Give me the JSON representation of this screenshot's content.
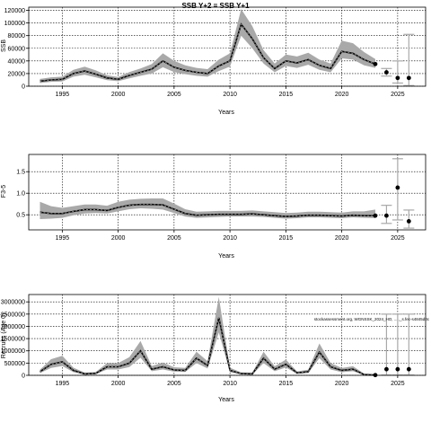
{
  "figure": {
    "title": "SSB Y+2 = SSB Y+1",
    "source_note": "stockassessment.org, WGNSSK_2024_HO, ... ,_s.fec-s4845d0c"
  },
  "chart_data": [
    {
      "type": "line",
      "ylabel": "SSB",
      "xlabel": "Years",
      "xlim": [
        1992,
        2027.5
      ],
      "ylim": [
        0,
        125000
      ],
      "xticks": [
        1995,
        2000,
        2005,
        2010,
        2015,
        2020,
        2025
      ],
      "yticks": [
        0,
        20000,
        40000,
        60000,
        80000,
        100000,
        120000
      ],
      "grid": true,
      "x": [
        1993,
        1994,
        1995,
        1996,
        1997,
        1998,
        1999,
        2000,
        2001,
        2002,
        2003,
        2004,
        2005,
        2006,
        2007,
        2008,
        2009,
        2010,
        2011,
        2012,
        2013,
        2014,
        2015,
        2016,
        2017,
        2018,
        2019,
        2020,
        2021,
        2022,
        2023
      ],
      "series": [
        {
          "role": "estimate",
          "values": [
            8000,
            10000,
            11000,
            20000,
            24000,
            19000,
            13000,
            11000,
            17000,
            22000,
            27000,
            40000,
            30000,
            25000,
            22000,
            20000,
            32000,
            40000,
            98000,
            75000,
            45000,
            28000,
            40000,
            37000,
            42000,
            33000,
            28000,
            55000,
            52000,
            42000,
            35000
          ]
        },
        {
          "role": "lower",
          "values": [
            5000,
            7000,
            7500,
            15000,
            18000,
            14000,
            9500,
            8000,
            12500,
            16500,
            20000,
            30000,
            22500,
            19000,
            16500,
            15000,
            24000,
            31000,
            80000,
            60000,
            36000,
            22000,
            32000,
            29000,
            34000,
            26000,
            22000,
            44000,
            42000,
            33000,
            29000
          ]
        },
        {
          "role": "upper",
          "values": [
            11500,
            14000,
            15000,
            26000,
            31000,
            25000,
            17500,
            14500,
            22500,
            28000,
            35000,
            52000,
            40000,
            33000,
            29000,
            27000,
            42000,
            52000,
            122000,
            95000,
            57000,
            36000,
            50000,
            47000,
            53000,
            42000,
            36000,
            72000,
            68000,
            54000,
            43000
          ]
        }
      ],
      "forecast": [
        {
          "x": 2024,
          "value": 22000,
          "low": 16000,
          "high": 28000
        },
        {
          "x": 2025,
          "value": 13000,
          "low": 5000,
          "high": 40000
        },
        {
          "x": 2026,
          "value": 13000,
          "low": 1000,
          "high": 82000
        }
      ]
    },
    {
      "type": "line",
      "ylabel": "F3-5",
      "xlabel": "Years",
      "xlim": [
        1992,
        2027.5
      ],
      "ylim": [
        0.15,
        1.9
      ],
      "xticks": [
        1995,
        2000,
        2005,
        2010,
        2015,
        2020,
        2025
      ],
      "yticks": [
        0.5,
        1.0,
        1.5
      ],
      "yticklabels": [
        "0.5",
        "1.0",
        "1.5"
      ],
      "grid": true,
      "x": [
        1993,
        1994,
        1995,
        1996,
        1997,
        1998,
        1999,
        2000,
        2001,
        2002,
        2003,
        2004,
        2005,
        2006,
        2007,
        2008,
        2009,
        2010,
        2011,
        2012,
        2013,
        2014,
        2015,
        2016,
        2017,
        2018,
        2019,
        2020,
        2021,
        2022,
        2023
      ],
      "series": [
        {
          "role": "estimate",
          "values": [
            0.56,
            0.53,
            0.53,
            0.58,
            0.62,
            0.62,
            0.6,
            0.67,
            0.72,
            0.74,
            0.74,
            0.73,
            0.63,
            0.53,
            0.49,
            0.5,
            0.51,
            0.51,
            0.51,
            0.52,
            0.5,
            0.48,
            0.46,
            0.47,
            0.49,
            0.49,
            0.48,
            0.47,
            0.49,
            0.48,
            0.48
          ]
        },
        {
          "role": "lower",
          "values": [
            0.4,
            0.41,
            0.43,
            0.49,
            0.53,
            0.54,
            0.53,
            0.58,
            0.63,
            0.65,
            0.64,
            0.62,
            0.54,
            0.46,
            0.43,
            0.44,
            0.45,
            0.46,
            0.46,
            0.46,
            0.45,
            0.43,
            0.41,
            0.42,
            0.44,
            0.44,
            0.43,
            0.42,
            0.44,
            0.43,
            0.42
          ]
        },
        {
          "role": "upper",
          "values": [
            0.8,
            0.7,
            0.66,
            0.7,
            0.74,
            0.74,
            0.71,
            0.8,
            0.85,
            0.87,
            0.88,
            0.88,
            0.76,
            0.63,
            0.57,
            0.58,
            0.59,
            0.59,
            0.59,
            0.6,
            0.58,
            0.56,
            0.54,
            0.55,
            0.57,
            0.57,
            0.56,
            0.55,
            0.58,
            0.58,
            0.62
          ]
        }
      ],
      "forecast": [
        {
          "x": 2024,
          "value": 0.48,
          "low": 0.3,
          "high": 0.72
        },
        {
          "x": 2025,
          "value": 1.13,
          "low": 0.38,
          "high": 1.8
        },
        {
          "x": 2026,
          "value": 0.35,
          "low": 0.19,
          "high": 0.61
        }
      ]
    },
    {
      "type": "line",
      "ylabel": "Recruits (Age 0)",
      "xlabel": "Years",
      "xlim": [
        1992,
        2027.5
      ],
      "ylim": [
        0,
        3300000
      ],
      "xticks": [
        1995,
        2000,
        2005,
        2010,
        2015,
        2020,
        2025
      ],
      "yticks": [
        0,
        500000,
        1000000,
        1500000,
        2000000,
        2500000,
        3000000
      ],
      "yticklabels": [
        "0",
        "500000",
        "1000000",
        "1500000",
        "2000000",
        "2500000",
        "3000000"
      ],
      "grid": true,
      "x": [
        1993,
        1994,
        1995,
        1996,
        1997,
        1998,
        1999,
        2000,
        2001,
        2002,
        2003,
        2004,
        2005,
        2006,
        2007,
        2008,
        2009,
        2010,
        2011,
        2012,
        2013,
        2014,
        2015,
        2016,
        2017,
        2018,
        2019,
        2020,
        2021,
        2022,
        2023
      ],
      "series": [
        {
          "role": "estimate",
          "values": [
            150000,
            450000,
            550000,
            200000,
            60000,
            80000,
            350000,
            350000,
            500000,
            1000000,
            250000,
            350000,
            220000,
            200000,
            700000,
            400000,
            2350000,
            200000,
            70000,
            60000,
            700000,
            250000,
            450000,
            100000,
            150000,
            950000,
            350000,
            200000,
            250000,
            30000,
            10000
          ]
        },
        {
          "role": "lower",
          "values": [
            90000,
            300000,
            380000,
            130000,
            30000,
            50000,
            240000,
            240000,
            340000,
            720000,
            170000,
            240000,
            150000,
            140000,
            500000,
            280000,
            1750000,
            130000,
            40000,
            30000,
            500000,
            170000,
            320000,
            60000,
            90000,
            700000,
            240000,
            130000,
            170000,
            10000,
            1000
          ]
        },
        {
          "role": "upper",
          "values": [
            230000,
            660000,
            800000,
            310000,
            110000,
            140000,
            500000,
            500000,
            740000,
            1400000,
            380000,
            520000,
            330000,
            300000,
            960000,
            580000,
            3200000,
            310000,
            120000,
            110000,
            960000,
            370000,
            640000,
            160000,
            230000,
            1300000,
            500000,
            300000,
            370000,
            70000,
            40000
          ]
        }
      ],
      "forecast": [
        {
          "x": 2024,
          "value": 250000,
          "low": 10000,
          "high": 2500000
        },
        {
          "x": 2025,
          "value": 250000,
          "low": 10000,
          "high": 2500000
        },
        {
          "x": 2026,
          "value": 250000,
          "low": 10000,
          "high": 2500000
        }
      ]
    }
  ]
}
